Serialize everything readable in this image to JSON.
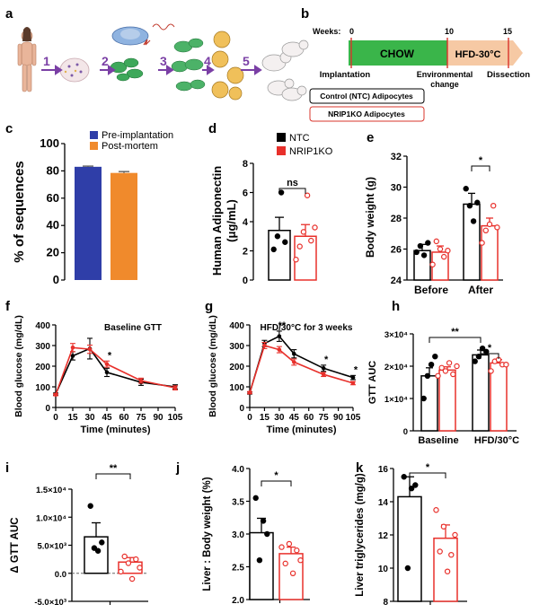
{
  "panel_letters": [
    "a",
    "b",
    "c",
    "d",
    "e",
    "f",
    "g",
    "h",
    "i",
    "j",
    "k"
  ],
  "panel_a": {
    "steps": [
      "1",
      "2",
      "3",
      "4",
      "5"
    ]
  },
  "panel_b": {
    "weeks_label": "Weeks:",
    "ticks": [
      "0",
      "10",
      "15"
    ],
    "chow": "CHOW",
    "hfd": "HFD-30°C",
    "implantation": "Implantation",
    "env_change_1": "Environmental",
    "env_change_2": "change",
    "dissection": "Dissection",
    "legend_ntc": "Control (NTC) Adipocytes",
    "legend_ko": "NRIP1KO Adipocytes"
  },
  "colors": {
    "ntc": "#000000",
    "ko": "#e8302b",
    "pre": "#2f3ea8",
    "post": "#f08a2c",
    "chow_bar": "#3ab54a",
    "hfd_bar": "#f6c9a4",
    "red_line": "#d9342b"
  },
  "legend_groups": {
    "ntc": "NTC",
    "ko": "NRIP1KO"
  },
  "chart_data": [
    {
      "id": "c",
      "type": "bar",
      "categories": [
        "Pre-implantation",
        "Post-mortem"
      ],
      "values": [
        83,
        78.5
      ],
      "errors": [
        0.5,
        1.0
      ],
      "series": [
        {
          "name": "Pre-implantation"
        },
        {
          "name": "Post-mortem"
        }
      ],
      "ylabel": "% of sequences",
      "ylim": [
        0,
        100
      ],
      "yticks": [
        "0",
        "20",
        "40",
        "60",
        "80",
        "100"
      ]
    },
    {
      "id": "d",
      "type": "bar",
      "categories": [
        "NTC",
        "NRIP1KO"
      ],
      "values": [
        3.4,
        3.0
      ],
      "errors": [
        0.9,
        0.8
      ],
      "points": [
        [
          2.1,
          3.0,
          6.0,
          2.6
        ],
        [
          1.4,
          2.3,
          3.3,
          5.8,
          2.7,
          3.6
        ]
      ],
      "ylabel_1": "Human Adiponectin",
      "ylabel_2": "(μg/mL)",
      "ylim": [
        0,
        8
      ],
      "yticks": [
        "0",
        "2",
        "4",
        "6",
        "8"
      ],
      "annotation": "ns",
      "legend": [
        "NTC",
        "NRIP1KO"
      ]
    },
    {
      "id": "e",
      "type": "bar",
      "categories": [
        "Before",
        "After"
      ],
      "series": [
        {
          "name": "NTC",
          "values": [
            25.9,
            28.9
          ],
          "errors": [
            0.4,
            0.7
          ]
        },
        {
          "name": "NRIP1KO",
          "values": [
            25.8,
            27.5
          ],
          "errors": [
            0.4,
            0.5
          ]
        }
      ],
      "points": {
        "NTC": [
          [
            25.8,
            26.2,
            25.6,
            26.4
          ],
          [
            29.9,
            28.8,
            27.8,
            29.0
          ]
        ],
        "NRIP1KO": [
          [
            25.0,
            26.5,
            26.0,
            25.5,
            25.9
          ],
          [
            26.4,
            27.2,
            27.6,
            28.8,
            27.4
          ]
        ]
      },
      "ylabel": "Body weight (g)",
      "ylim": [
        24,
        32
      ],
      "yticks": [
        "24",
        "26",
        "28",
        "30",
        "32"
      ],
      "annotation": "*"
    },
    {
      "id": "f",
      "type": "line",
      "title": "Baseline GTT",
      "x": [
        0,
        15,
        30,
        45,
        75,
        105
      ],
      "series": [
        {
          "name": "NTC",
          "values": [
            65,
            250,
            285,
            170,
            122,
            100
          ],
          "errors": [
            5,
            20,
            50,
            20,
            15,
            10
          ]
        },
        {
          "name": "NRIP1KO",
          "values": [
            62,
            290,
            282,
            210,
            130,
            95
          ],
          "errors": [
            5,
            20,
            20,
            15,
            12,
            10
          ]
        }
      ],
      "xlabel": "Time (minutes)",
      "ylabel": "Blood glucose (mg/dL)",
      "ylim": [
        0,
        400
      ],
      "yticks": [
        "0",
        "100",
        "200",
        "300",
        "400"
      ],
      "xticks": [
        "0",
        "15",
        "30",
        "45",
        "60",
        "75",
        "90",
        "105"
      ],
      "annotations": [
        {
          "x": 45,
          "text": "*"
        }
      ]
    },
    {
      "id": "g",
      "type": "line",
      "title": "HFD/30°C for 3 weeks",
      "x": [
        0,
        15,
        30,
        45,
        75,
        105
      ],
      "series": [
        {
          "name": "NTC",
          "values": [
            70,
            310,
            345,
            260,
            190,
            145
          ],
          "errors": [
            5,
            15,
            25,
            20,
            15,
            10
          ]
        },
        {
          "name": "NRIP1KO",
          "values": [
            72,
            300,
            280,
            220,
            160,
            118
          ],
          "errors": [
            5,
            15,
            15,
            15,
            10,
            8
          ]
        }
      ],
      "xlabel": "Time (minutes)",
      "ylabel": "Blood glucose (mg/dL)",
      "ylim": [
        0,
        400
      ],
      "yticks": [
        "0",
        "100",
        "200",
        "300",
        "400"
      ],
      "xticks": [
        "0",
        "15",
        "30",
        "45",
        "60",
        "75",
        "90",
        "105"
      ],
      "annotations": [
        {
          "x": 30,
          "text": "**"
        },
        {
          "x": 75,
          "text": "*"
        },
        {
          "x": 105,
          "text": "*"
        }
      ]
    },
    {
      "id": "h",
      "type": "bar",
      "categories": [
        "Baseline",
        "HFD/30°C"
      ],
      "series": [
        {
          "name": "NTC",
          "values": [
            17000,
            23500
          ],
          "errors": [
            2500,
            1500
          ]
        },
        {
          "name": "NRIP1KO",
          "values": [
            18800,
            21000
          ],
          "errors": [
            1000,
            1000
          ]
        }
      ],
      "points": {
        "NTC": [
          [
            10000,
            17000,
            20500,
            23000
          ],
          [
            21500,
            23000,
            25500,
            24500
          ]
        ],
        "NRIP1KO": [
          [
            17000,
            19500,
            18500,
            21000,
            17500,
            20000
          ],
          [
            18500,
            21500,
            22000,
            20500,
            20500
          ]
        ]
      },
      "ylabel": "GTT AUC",
      "ylim": [
        0,
        30000
      ],
      "yticks": [
        "0",
        "1×10⁴",
        "2×10⁴",
        "3×10⁴"
      ],
      "annotations": [
        "**",
        "*"
      ]
    },
    {
      "id": "i",
      "type": "bar",
      "categories": [
        "NTC",
        "NRIP1KO"
      ],
      "values": [
        6500,
        2000
      ],
      "errors": [
        2500,
        800
      ],
      "points": [
        [
          12000,
          4500,
          4000,
          5500
        ],
        [
          300,
          3000,
          1800,
          -1000,
          2500,
          1000
        ]
      ],
      "ylabel": "Δ GTT AUC",
      "ylim": [
        -5000,
        15000
      ],
      "yticks": [
        "-5.0×10³",
        "0.0",
        "5.0×10³",
        "1.0×10⁴",
        "1.5×10⁴"
      ],
      "annotation": "**"
    },
    {
      "id": "j",
      "type": "bar",
      "categories": [
        "NTC",
        "NRIP1KO"
      ],
      "values": [
        3.02,
        2.7
      ],
      "errors": [
        0.22,
        0.1
      ],
      "points": [
        [
          3.55,
          2.6,
          3.2,
          3.0
        ],
        [
          2.8,
          2.55,
          2.85,
          2.4,
          2.75,
          2.6
        ]
      ],
      "ylabel": "Liver : Body weight (%)",
      "ylim": [
        2.0,
        4.0
      ],
      "yticks": [
        "2.0",
        "2.5",
        "3.0",
        "3.5",
        "4.0"
      ],
      "annotation": "*"
    },
    {
      "id": "k",
      "type": "bar",
      "categories": [
        "NTC",
        "NRIP1KO"
      ],
      "values": [
        14.3,
        11.8
      ],
      "errors": [
        1.2,
        0.8
      ],
      "points": [
        [
          15.5,
          10.0,
          14.8,
          15.0
        ],
        [
          13.5,
          11.0,
          12.5,
          9.8,
          10.8,
          12.0
        ]
      ],
      "ylabel": "Liver triglycerides (mg/g)",
      "ylim": [
        8,
        16
      ],
      "yticks": [
        "8",
        "10",
        "12",
        "14",
        "16"
      ],
      "annotation": "*"
    }
  ]
}
